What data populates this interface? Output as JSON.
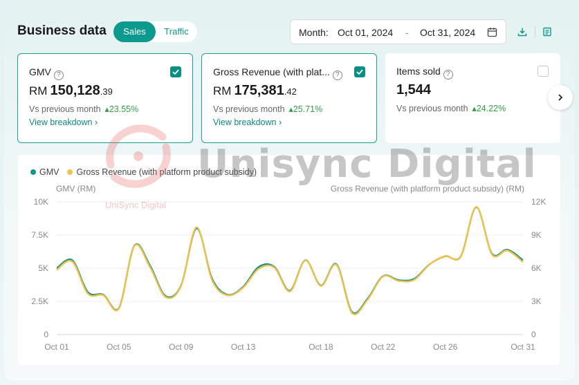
{
  "header": {
    "title": "Business data",
    "tabs": [
      {
        "label": "Sales",
        "active": true
      },
      {
        "label": "Traffic",
        "active": false
      }
    ],
    "date_filter": {
      "prefix": "Month:",
      "start": "Oct 01, 2024",
      "separator": "-",
      "end": "Oct 31, 2024"
    },
    "icons": [
      "download-icon",
      "report-icon"
    ]
  },
  "cards": [
    {
      "label": "GMV",
      "checked": true,
      "currency": "RM",
      "value_int": "150,128",
      "value_dec": ".39",
      "compare_label": "Vs previous month",
      "change": "23.55%",
      "link": "View breakdown"
    },
    {
      "label": "Gross Revenue (with plat...",
      "checked": true,
      "currency": "RM",
      "value_int": "175,381",
      "value_dec": ".42",
      "compare_label": "Vs previous month",
      "change": "25.71%",
      "link": "View breakdown"
    },
    {
      "label": "Items sold",
      "checked": false,
      "currency": "",
      "value_int": "1,544",
      "value_dec": "",
      "compare_label": "Vs previous month",
      "change": "24.22%",
      "link": ""
    }
  ],
  "watermark": {
    "text": "Unisync Digital",
    "logo_text": "UniSync Digital"
  },
  "colors": {
    "accent": "#0b9a8d",
    "gmv": "#13948a",
    "gross_revenue": "#f2c14b",
    "positive": "#2f9e44"
  },
  "chart_data": {
    "type": "line",
    "x": [
      "Oct 01",
      "Oct 02",
      "Oct 03",
      "Oct 04",
      "Oct 05",
      "Oct 06",
      "Oct 07",
      "Oct 08",
      "Oct 09",
      "Oct 10",
      "Oct 11",
      "Oct 12",
      "Oct 13",
      "Oct 14",
      "Oct 15",
      "Oct 16",
      "Oct 17",
      "Oct 18",
      "Oct 19",
      "Oct 20",
      "Oct 21",
      "Oct 22",
      "Oct 23",
      "Oct 24",
      "Oct 25",
      "Oct 26",
      "Oct 27",
      "Oct 28",
      "Oct 29",
      "Oct 30",
      "Oct 31"
    ],
    "tick_labels": [
      "Oct 01",
      "Oct 05",
      "Oct 09",
      "Oct 13",
      "Oct 18",
      "Oct 22",
      "Oct 26",
      "Oct 31"
    ],
    "tick_days": [
      1,
      5,
      9,
      13,
      18,
      22,
      26,
      31
    ],
    "y_left": {
      "label": "GMV (RM)",
      "range": [
        0,
        10000
      ],
      "ticks": [
        "0",
        "2.5K",
        "5K",
        "7.5K",
        "10K"
      ]
    },
    "y_right": {
      "label": "Gross Revenue (with platform product subsidy) (RM)",
      "range": [
        0,
        12000
      ],
      "ticks": [
        "0",
        "3K",
        "6K",
        "9K",
        "12K"
      ]
    },
    "grid": true,
    "legend": "top-left",
    "series": [
      {
        "name": "GMV",
        "axis": "left",
        "color": "#13948a",
        "values": [
          5000,
          5600,
          3200,
          3000,
          2000,
          6700,
          5200,
          2900,
          3700,
          8000,
          4200,
          3000,
          3600,
          5100,
          5100,
          3300,
          5600,
          3700,
          5300,
          1700,
          2700,
          4400,
          4100,
          4200,
          5300,
          5900,
          5900,
          9600,
          6100,
          6400,
          5600
        ]
      },
      {
        "name": "Gross Revenue (with platform product subsidy)",
        "axis": "right",
        "color": "#f2c14b",
        "values": [
          5850,
          6600,
          3700,
          3550,
          2350,
          8000,
          6100,
          3400,
          4400,
          9700,
          4900,
          3550,
          4250,
          5950,
          6050,
          3900,
          6700,
          4400,
          6300,
          1950,
          3150,
          5250,
          4850,
          4950,
          6350,
          7100,
          7050,
          11550,
          7250,
          7600,
          6550
        ]
      }
    ]
  }
}
